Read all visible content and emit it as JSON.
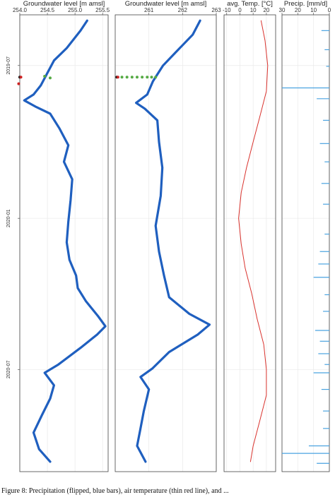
{
  "caption": "Figure 8: Precipitation (flipped, blue bars), air temperature (thin red line), and ...",
  "chart_data": [
    {
      "type": "line",
      "orientation": "vertical-time",
      "title": "Groundwater level [m amsl]",
      "xlim": [
        254.0,
        255.6
      ],
      "xticks": [
        "254.0",
        "254.5",
        "255.0",
        "255.5"
      ],
      "y_ticks": [
        "2019-07",
        "2020-01",
        "2020-07"
      ],
      "ylim": [
        "2019-05",
        "2020-11"
      ],
      "color": "#1f5fbf",
      "series": [
        {
          "values": [
            {
              "t": "2019-05-08",
              "v": 255.22
            },
            {
              "t": "2019-05-20",
              "v": 255.1
            },
            {
              "t": "2019-06-10",
              "v": 254.85
            },
            {
              "t": "2019-06-25",
              "v": 254.62
            },
            {
              "t": "2019-07-10",
              "v": 254.5
            },
            {
              "t": "2019-07-25",
              "v": 254.38
            },
            {
              "t": "2019-08-05",
              "v": 254.25
            },
            {
              "t": "2019-08-12",
              "v": 254.08
            },
            {
              "t": "2019-08-20",
              "v": 254.3
            },
            {
              "t": "2019-08-28",
              "v": 254.55
            },
            {
              "t": "2019-09-15",
              "v": 254.72
            },
            {
              "t": "2019-10-05",
              "v": 254.88
            },
            {
              "t": "2019-10-25",
              "v": 254.8
            },
            {
              "t": "2019-11-15",
              "v": 254.95
            },
            {
              "t": "2019-12-10",
              "v": 254.92
            },
            {
              "t": "2020-01-05",
              "v": 254.88
            },
            {
              "t": "2020-01-30",
              "v": 254.85
            },
            {
              "t": "2020-02-20",
              "v": 254.9
            },
            {
              "t": "2020-03-10",
              "v": 255.02
            },
            {
              "t": "2020-03-25",
              "v": 255.05
            },
            {
              "t": "2020-04-10",
              "v": 255.2
            },
            {
              "t": "2020-04-28",
              "v": 255.42
            },
            {
              "t": "2020-05-10",
              "v": 255.55
            },
            {
              "t": "2020-05-20",
              "v": 255.4
            },
            {
              "t": "2020-06-05",
              "v": 255.1
            },
            {
              "t": "2020-06-25",
              "v": 254.7
            },
            {
              "t": "2020-07-05",
              "v": 254.45
            },
            {
              "t": "2020-07-20",
              "v": 254.62
            },
            {
              "t": "2020-08-05",
              "v": 254.55
            },
            {
              "t": "2020-08-25",
              "v": 254.4
            },
            {
              "t": "2020-09-15",
              "v": 254.25
            },
            {
              "t": "2020-10-05",
              "v": 254.35
            },
            {
              "t": "2020-10-20",
              "v": 254.55
            }
          ]
        }
      ],
      "points": [
        {
          "t": "2019-07-15",
          "v": 254.0,
          "color": "#111111"
        },
        {
          "t": "2019-07-15",
          "v": 254.02,
          "color": "#cc2222"
        },
        {
          "t": "2019-07-23",
          "v": 253.98,
          "color": "#cc2222"
        },
        {
          "t": "2019-07-14",
          "v": 254.45,
          "color": "#55aa44"
        },
        {
          "t": "2019-07-16",
          "v": 254.55,
          "color": "#55aa44"
        }
      ]
    },
    {
      "type": "line",
      "orientation": "vertical-time",
      "title": "Groundwater level [m amsl]",
      "xlim": [
        260.0,
        263.0
      ],
      "xticks": [
        "261",
        "262",
        "263"
      ],
      "ylim": [
        "2019-05",
        "2020-11"
      ],
      "color": "#1f5fbf",
      "series": [
        {
          "values": [
            {
              "t": "2019-05-08",
              "v": 262.52
            },
            {
              "t": "2019-05-25",
              "v": 262.3
            },
            {
              "t": "2019-06-15",
              "v": 261.8
            },
            {
              "t": "2019-07-01",
              "v": 261.42
            },
            {
              "t": "2019-07-20",
              "v": 261.12
            },
            {
              "t": "2019-08-05",
              "v": 260.95
            },
            {
              "t": "2019-08-15",
              "v": 260.62
            },
            {
              "t": "2019-08-22",
              "v": 260.88
            },
            {
              "t": "2019-09-05",
              "v": 261.25
            },
            {
              "t": "2019-10-01",
              "v": 261.3
            },
            {
              "t": "2019-11-01",
              "v": 261.4
            },
            {
              "t": "2019-12-05",
              "v": 261.35
            },
            {
              "t": "2020-01-10",
              "v": 261.2
            },
            {
              "t": "2020-02-10",
              "v": 261.3
            },
            {
              "t": "2020-03-10",
              "v": 261.45
            },
            {
              "t": "2020-04-05",
              "v": 261.6
            },
            {
              "t": "2020-04-25",
              "v": 262.2
            },
            {
              "t": "2020-05-08",
              "v": 262.8
            },
            {
              "t": "2020-05-20",
              "v": 262.45
            },
            {
              "t": "2020-06-10",
              "v": 261.6
            },
            {
              "t": "2020-06-30",
              "v": 261.1
            },
            {
              "t": "2020-07-10",
              "v": 260.75
            },
            {
              "t": "2020-07-25",
              "v": 261.0
            },
            {
              "t": "2020-08-20",
              "v": 260.85
            },
            {
              "t": "2020-09-10",
              "v": 260.75
            },
            {
              "t": "2020-10-01",
              "v": 260.65
            },
            {
              "t": "2020-10-20",
              "v": 260.9
            }
          ]
        }
      ],
      "points": [
        {
          "t": "2019-07-15",
          "v": 260.05,
          "color": "#111111"
        },
        {
          "t": "2019-07-15",
          "v": 260.08,
          "color": "#cc2222"
        },
        {
          "t": "2019-07-15",
          "v": 260.2,
          "color": "#55aa44"
        },
        {
          "t": "2019-07-15",
          "v": 260.35,
          "color": "#55aa44"
        },
        {
          "t": "2019-07-15",
          "v": 260.5,
          "color": "#55aa44"
        },
        {
          "t": "2019-07-15",
          "v": 260.65,
          "color": "#55aa44"
        },
        {
          "t": "2019-07-15",
          "v": 260.8,
          "color": "#55aa44"
        },
        {
          "t": "2019-07-15",
          "v": 260.95,
          "color": "#55aa44"
        },
        {
          "t": "2019-07-15",
          "v": 261.08,
          "color": "#55aa44"
        },
        {
          "t": "2019-07-15",
          "v": 261.2,
          "color": "#55aa44"
        }
      ]
    },
    {
      "type": "line",
      "orientation": "vertical-time",
      "title": "avg. Temp. [°C]",
      "xlim": [
        -12,
        27
      ],
      "xticks": [
        "-10",
        "0",
        "10",
        "20"
      ],
      "ylim": [
        "2019-05",
        "2020-11"
      ],
      "color": "#d9322d",
      "series": [
        {
          "values": [
            {
              "t": "2019-05-08",
              "v": 16
            },
            {
              "t": "2019-06-01",
              "v": 19
            },
            {
              "t": "2019-07-01",
              "v": 21
            },
            {
              "t": "2019-08-01",
              "v": 20
            },
            {
              "t": "2019-09-01",
              "v": 15
            },
            {
              "t": "2019-10-01",
              "v": 10
            },
            {
              "t": "2019-11-01",
              "v": 5
            },
            {
              "t": "2019-12-01",
              "v": 1
            },
            {
              "t": "2020-01-01",
              "v": -1
            },
            {
              "t": "2020-02-01",
              "v": 1
            },
            {
              "t": "2020-03-01",
              "v": 4
            },
            {
              "t": "2020-04-01",
              "v": 9
            },
            {
              "t": "2020-05-01",
              "v": 13
            },
            {
              "t": "2020-06-01",
              "v": 18
            },
            {
              "t": "2020-07-01",
              "v": 20
            },
            {
              "t": "2020-08-01",
              "v": 20
            },
            {
              "t": "2020-09-01",
              "v": 15
            },
            {
              "t": "2020-10-01",
              "v": 10
            },
            {
              "t": "2020-10-20",
              "v": 8
            }
          ]
        }
      ]
    },
    {
      "type": "bar",
      "orientation": "vertical-time",
      "title": "Precip. [mm/d]",
      "xlim": [
        30,
        0
      ],
      "xticks": [
        "30",
        "20",
        "10",
        "0"
      ],
      "ylim": [
        "2019-05",
        "2020-11"
      ],
      "color": "#4aa3e0",
      "values": [
        {
          "t": "2019-05-20",
          "v": 5
        },
        {
          "t": "2019-06-12",
          "v": 3
        },
        {
          "t": "2019-07-02",
          "v": 2
        },
        {
          "t": "2019-07-28",
          "v": 30
        },
        {
          "t": "2019-08-10",
          "v": 8
        },
        {
          "t": "2019-09-05",
          "v": 4
        },
        {
          "t": "2019-10-03",
          "v": 6
        },
        {
          "t": "2019-10-25",
          "v": 3
        },
        {
          "t": "2019-11-20",
          "v": 5
        },
        {
          "t": "2019-12-15",
          "v": 4
        },
        {
          "t": "2020-01-20",
          "v": 3
        },
        {
          "t": "2020-02-10",
          "v": 6
        },
        {
          "t": "2020-02-25",
          "v": 7
        },
        {
          "t": "2020-03-12",
          "v": 10
        },
        {
          "t": "2020-04-02",
          "v": 3
        },
        {
          "t": "2020-04-22",
          "v": 4
        },
        {
          "t": "2020-05-15",
          "v": 9
        },
        {
          "t": "2020-05-28",
          "v": 6
        },
        {
          "t": "2020-06-12",
          "v": 7
        },
        {
          "t": "2020-06-25",
          "v": 3
        },
        {
          "t": "2020-07-05",
          "v": 10
        },
        {
          "t": "2020-07-25",
          "v": 5
        },
        {
          "t": "2020-08-20",
          "v": 4
        },
        {
          "t": "2020-09-10",
          "v": 4
        },
        {
          "t": "2020-10-01",
          "v": 13
        },
        {
          "t": "2020-10-10",
          "v": 30
        },
        {
          "t": "2020-10-22",
          "v": 8
        }
      ]
    }
  ]
}
